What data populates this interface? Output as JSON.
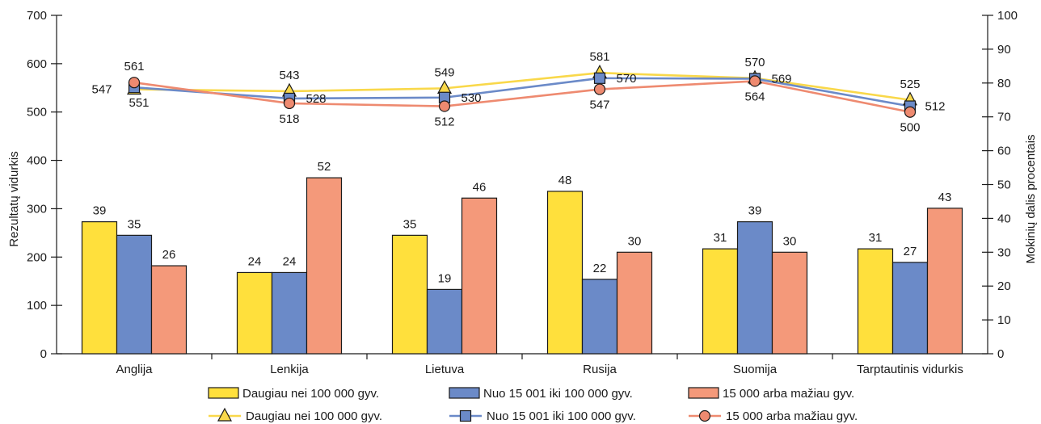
{
  "chart_data": {
    "type": "bar",
    "title": "",
    "categories": [
      "Anglija",
      "Lenkija",
      "Lietuva",
      "Rusija",
      "Suomija",
      "Tarptautinis vidurkis"
    ],
    "left_axis": {
      "label": "Rezultatų vidurkis",
      "range": [
        0,
        700
      ],
      "ticks": [
        0,
        100,
        200,
        300,
        400,
        500,
        600,
        700
      ]
    },
    "right_axis": {
      "label": "Mokinių dalis procentais",
      "range": [
        0,
        100
      ],
      "ticks": [
        0,
        10,
        20,
        30,
        40,
        50,
        60,
        70,
        80,
        90,
        100
      ]
    },
    "bar_series": [
      {
        "name": "Daugiau nei 100 000 gyv.",
        "color": "#FFE03C",
        "values": [
          39,
          24,
          35,
          48,
          31,
          31
        ]
      },
      {
        "name": "Nuo 15 001 iki 100 000 gyv.",
        "color": "#6B8AC8",
        "values": [
          35,
          24,
          19,
          22,
          39,
          27
        ]
      },
      {
        "name": "15 000 arba mažiau gyv.",
        "color": "#F4997A",
        "values": [
          26,
          52,
          46,
          30,
          30,
          43
        ]
      }
    ],
    "line_series": [
      {
        "name": "Daugiau nei 100 000  gyv.",
        "color": "#F9D84A",
        "marker": "triangle",
        "values": [
          547,
          543,
          549,
          581,
          570,
          525
        ]
      },
      {
        "name": "Nuo 15 001 iki 100 000  gyv.",
        "color": "#6B8AC8",
        "marker": "square",
        "values": [
          551,
          528,
          530,
          570,
          569,
          512
        ]
      },
      {
        "name": "15 000 arba mažiau  gyv.",
        "color": "#EE8A70",
        "marker": "circle",
        "values": [
          561,
          518,
          512,
          547,
          564,
          500
        ]
      }
    ],
    "grid": false,
    "legend_position": "bottom"
  }
}
